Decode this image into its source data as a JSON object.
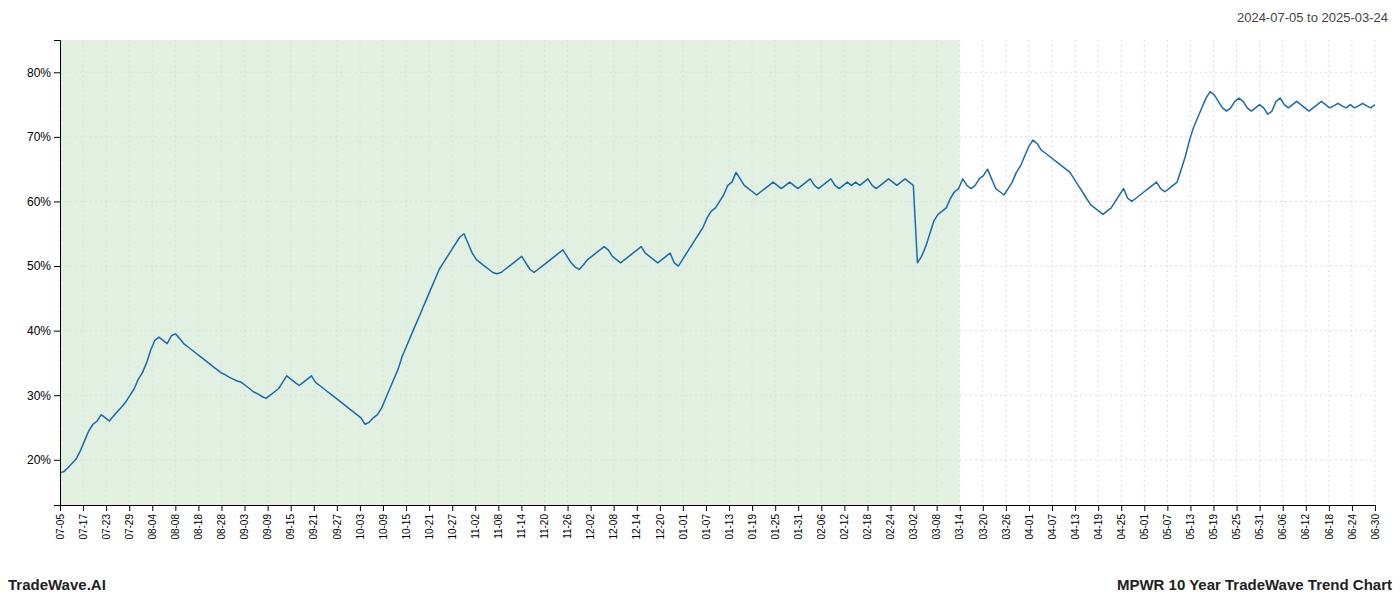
{
  "chart_data": {
    "type": "line",
    "annotations": [
      "2024-07-05 to 2025-03-24",
      "TradeWave.AI",
      "MPWR 10 Year TradeWave Trend Chart"
    ],
    "color": "#1a6ab0",
    "grid": true,
    "shaded": {
      "x": [
        0,
        218.2632
      ],
      "color": "#d4ead4"
    },
    "xlim": [
      0,
      319
    ],
    "xticks": [
      {
        "value": 0,
        "label": "07-05"
      },
      {
        "value": 5.5965,
        "label": "07-17"
      },
      {
        "value": 11.193,
        "label": "07-23"
      },
      {
        "value": 16.7895,
        "label": "07-29"
      },
      {
        "value": 22.386,
        "label": "08-04"
      },
      {
        "value": 27.9825,
        "label": "08-08"
      },
      {
        "value": 33.5789,
        "label": "08-18"
      },
      {
        "value": 39.1754,
        "label": "08-28"
      },
      {
        "value": 44.7719,
        "label": "09-03"
      },
      {
        "value": 50.3684,
        "label": "09-09"
      },
      {
        "value": 55.9649,
        "label": "09-15"
      },
      {
        "value": 61.5614,
        "label": "09-21"
      },
      {
        "value": 67.1579,
        "label": "09-27"
      },
      {
        "value": 72.7544,
        "label": "10-03"
      },
      {
        "value": 78.3509,
        "label": "10-09"
      },
      {
        "value": 83.9474,
        "label": "10-15"
      },
      {
        "value": 89.5439,
        "label": "10-21"
      },
      {
        "value": 95.1404,
        "label": "10-27"
      },
      {
        "value": 100.7368,
        "label": "11-02"
      },
      {
        "value": 106.3333,
        "label": "11-08"
      },
      {
        "value": 111.9298,
        "label": "11-14"
      },
      {
        "value": 117.5263,
        "label": "11-20"
      },
      {
        "value": 123.1228,
        "label": "11-26"
      },
      {
        "value": 128.7193,
        "label": "12-02"
      },
      {
        "value": 134.3158,
        "label": "12-08"
      },
      {
        "value": 139.9123,
        "label": "12-14"
      },
      {
        "value": 145.5088,
        "label": "12-20"
      },
      {
        "value": 151.1053,
        "label": "01-01"
      },
      {
        "value": 156.7018,
        "label": "01-07"
      },
      {
        "value": 162.2982,
        "label": "01-13"
      },
      {
        "value": 167.8947,
        "label": "01-19"
      },
      {
        "value": 173.4912,
        "label": "01-25"
      },
      {
        "value": 179.0877,
        "label": "01-31"
      },
      {
        "value": 184.6842,
        "label": "02-06"
      },
      {
        "value": 190.2807,
        "label": "02-12"
      },
      {
        "value": 195.8772,
        "label": "02-18"
      },
      {
        "value": 201.4737,
        "label": "02-24"
      },
      {
        "value": 207.0702,
        "label": "03-02"
      },
      {
        "value": 212.6667,
        "label": "03-08"
      },
      {
        "value": 218.2632,
        "label": "03-14"
      },
      {
        "value": 223.8596,
        "label": "03-20"
      },
      {
        "value": 229.4561,
        "label": "03-26"
      },
      {
        "value": 235.0526,
        "label": "04-01"
      },
      {
        "value": 240.6491,
        "label": "04-07"
      },
      {
        "value": 246.2456,
        "label": "04-13"
      },
      {
        "value": 251.8421,
        "label": "04-19"
      },
      {
        "value": 257.4386,
        "label": "04-25"
      },
      {
        "value": 263.0351,
        "label": "05-01"
      },
      {
        "value": 268.6316,
        "label": "05-07"
      },
      {
        "value": 274.2281,
        "label": "05-13"
      },
      {
        "value": 279.8246,
        "label": "05-19"
      },
      {
        "value": 285.4211,
        "label": "05-25"
      },
      {
        "value": 291.0175,
        "label": "05-31"
      },
      {
        "value": 296.614,
        "label": "06-06"
      },
      {
        "value": 302.2105,
        "label": "06-12"
      },
      {
        "value": 307.807,
        "label": "06-18"
      },
      {
        "value": 313.4035,
        "label": "06-24"
      },
      {
        "value": 319,
        "label": "06-30"
      }
    ],
    "ylim": [
      13,
      85
    ],
    "yticks": [
      {
        "value": 20,
        "label": "20%"
      },
      {
        "value": 30,
        "label": "30%"
      },
      {
        "value": 40,
        "label": "40%"
      },
      {
        "value": 50,
        "label": "50%"
      },
      {
        "value": 60,
        "label": "60%"
      },
      {
        "value": 70,
        "label": "70%"
      },
      {
        "value": 80,
        "label": "80%"
      }
    ],
    "values": [
      18.0,
      18.2,
      18.8,
      19.5,
      20.2,
      21.5,
      23.0,
      24.5,
      25.5,
      26.0,
      27.0,
      26.5,
      26.0,
      26.8,
      27.5,
      28.2,
      29.0,
      30.0,
      31.0,
      32.5,
      33.5,
      35.0,
      37.0,
      38.5,
      39.0,
      38.5,
      38.0,
      39.2,
      39.5,
      38.8,
      38.0,
      37.5,
      37.0,
      36.5,
      36.0,
      35.5,
      35.0,
      34.5,
      34.0,
      33.5,
      33.2,
      32.8,
      32.5,
      32.2,
      32.0,
      31.5,
      31.0,
      30.5,
      30.2,
      29.8,
      29.5,
      30.0,
      30.5,
      31.0,
      32.0,
      33.0,
      32.5,
      32.0,
      31.5,
      32.0,
      32.5,
      33.0,
      32.0,
      31.5,
      31.0,
      30.5,
      30.0,
      29.5,
      29.0,
      28.5,
      28.0,
      27.5,
      27.0,
      26.5,
      25.5,
      25.8,
      26.5,
      27.0,
      28.0,
      29.5,
      31.0,
      32.5,
      34.0,
      36.0,
      37.5,
      39.0,
      40.5,
      42.0,
      43.5,
      45.0,
      46.5,
      48.0,
      49.5,
      50.5,
      51.5,
      52.5,
      53.5,
      54.5,
      55.0,
      53.5,
      52.0,
      51.0,
      50.5,
      50.0,
      49.5,
      49.0,
      48.8,
      49.0,
      49.5,
      50.0,
      50.5,
      51.0,
      51.5,
      50.5,
      49.5,
      49.0,
      49.5,
      50.0,
      50.5,
      51.0,
      51.5,
      52.0,
      52.5,
      51.5,
      50.5,
      49.8,
      49.5,
      50.2,
      51.0,
      51.5,
      52.0,
      52.5,
      53.0,
      52.5,
      51.5,
      51.0,
      50.5,
      51.0,
      51.5,
      52.0,
      52.5,
      53.0,
      52.0,
      51.5,
      51.0,
      50.5,
      51.0,
      51.5,
      52.0,
      50.5,
      50.0,
      51.0,
      52.0,
      53.0,
      54.0,
      55.0,
      56.0,
      57.5,
      58.5,
      59.0,
      60.0,
      61.0,
      62.5,
      63.0,
      64.5,
      63.5,
      62.5,
      62.0,
      61.5,
      61.0,
      61.5,
      62.0,
      62.5,
      63.0,
      62.5,
      62.0,
      62.5,
      63.0,
      62.5,
      62.0,
      62.5,
      63.0,
      63.5,
      62.5,
      62.0,
      62.5,
      63.0,
      63.5,
      62.5,
      62.0,
      62.5,
      63.0,
      62.5,
      63.0,
      62.5,
      63.0,
      63.5,
      62.5,
      62.0,
      62.5,
      63.0,
      63.5,
      63.0,
      62.5,
      63.0,
      63.5,
      63.0,
      62.5,
      50.5,
      51.5,
      53.0,
      55.0,
      57.0,
      58.0,
      58.5,
      59.0,
      60.5,
      61.5,
      62.0,
      63.5,
      62.5,
      62.0,
      62.5,
      63.5,
      64.0,
      65.0,
      63.5,
      62.0,
      61.5,
      61.0,
      62.0,
      63.0,
      64.5,
      65.5,
      67.0,
      68.5,
      69.5,
      69.0,
      68.0,
      67.5,
      67.0,
      66.5,
      66.0,
      65.5,
      65.0,
      64.5,
      63.5,
      62.5,
      61.5,
      60.5,
      59.5,
      59.0,
      58.5,
      58.0,
      58.5,
      59.0,
      60.0,
      61.0,
      62.0,
      60.5,
      60.0,
      60.5,
      61.0,
      61.5,
      62.0,
      62.5,
      63.0,
      62.0,
      61.5,
      62.0,
      62.5,
      63.0,
      65.0,
      67.0,
      69.5,
      71.5,
      73.0,
      74.5,
      76.0,
      77.0,
      76.5,
      75.5,
      74.5,
      74.0,
      74.5,
      75.5,
      76.0,
      75.5,
      74.5,
      74.0,
      74.5,
      75.0,
      74.5,
      73.5,
      74.0,
      75.5,
      76.0,
      75.0,
      74.5,
      75.0,
      75.5,
      75.0,
      74.5,
      74.0,
      74.5,
      75.0,
      75.5,
      75.0,
      74.5,
      74.8,
      75.2,
      74.8,
      74.5,
      75.0,
      74.5,
      74.8,
      75.2,
      74.8,
      74.5,
      75.0
    ]
  }
}
